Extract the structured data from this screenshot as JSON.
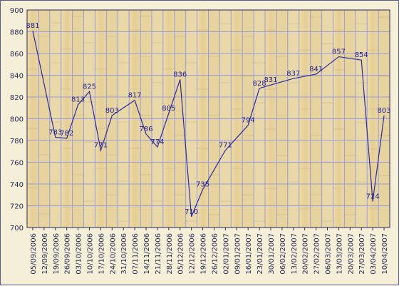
{
  "chart_data": {
    "type": "line",
    "title": "",
    "xlabel": "",
    "ylabel": "",
    "ylim": [
      700,
      900
    ],
    "yticks": [
      700,
      720,
      740,
      760,
      780,
      800,
      820,
      840,
      860,
      880,
      900
    ],
    "xtick_labels": [
      "05/09/2006",
      "12/09/2006",
      "19/09/2006",
      "26/09/2006",
      "03/10/2006",
      "10/10/2006",
      "17/10/2006",
      "24/10/2006",
      "31/10/2006",
      "07/11/2006",
      "14/11/2006",
      "21/11/2006",
      "28/11/2006",
      "05/12/2006",
      "12/12/2006",
      "19/12/2006",
      "26/12/2006",
      "02/01/2007",
      "09/01/2007",
      "16/01/2007",
      "23/01/2007",
      "30/01/2007",
      "06/02/2007",
      "13/02/2007",
      "20/02/2007",
      "27/02/2007",
      "06/03/2007",
      "13/03/2007",
      "20/03/2007",
      "27/03/2007",
      "03/04/2007",
      "10/04/2007"
    ],
    "grid": true,
    "points": [
      {
        "x": "05/09/2006",
        "y": 881
      },
      {
        "x": "19/09/2006",
        "y": 783
      },
      {
        "x": "26/09/2006",
        "y": 782
      },
      {
        "x": "03/10/2006",
        "y": 813
      },
      {
        "x": "10/10/2006",
        "y": 825
      },
      {
        "x": "17/10/2006",
        "y": 771
      },
      {
        "x": "24/10/2006",
        "y": 803
      },
      {
        "x": "07/11/2006",
        "y": 817
      },
      {
        "x": "14/11/2006",
        "y": 786
      },
      {
        "x": "21/11/2006",
        "y": 774
      },
      {
        "x": "28/11/2006",
        "y": 805
      },
      {
        "x": "05/12/2006",
        "y": 836
      },
      {
        "x": "12/12/2006",
        "y": 710
      },
      {
        "x": "19/12/2006",
        "y": 735
      },
      {
        "x": "02/01/2007",
        "y": 771
      },
      {
        "x": "16/01/2007",
        "y": 794
      },
      {
        "x": "23/01/2007",
        "y": 828
      },
      {
        "x": "30/01/2007",
        "y": 831
      },
      {
        "x": "13/02/2007",
        "y": 837
      },
      {
        "x": "27/02/2007",
        "y": 841
      },
      {
        "x": "13/03/2007",
        "y": 857
      },
      {
        "x": "27/03/2007",
        "y": 854
      },
      {
        "x": "03/04/2007",
        "y": 724
      },
      {
        "x": "10/04/2007",
        "y": 803
      }
    ],
    "colors": {
      "line": "#2a2aa6",
      "label": "#1f1f9a",
      "grid": "#9a9adc",
      "axis": "#2a2a5a",
      "background": "#e9d8a6"
    }
  }
}
